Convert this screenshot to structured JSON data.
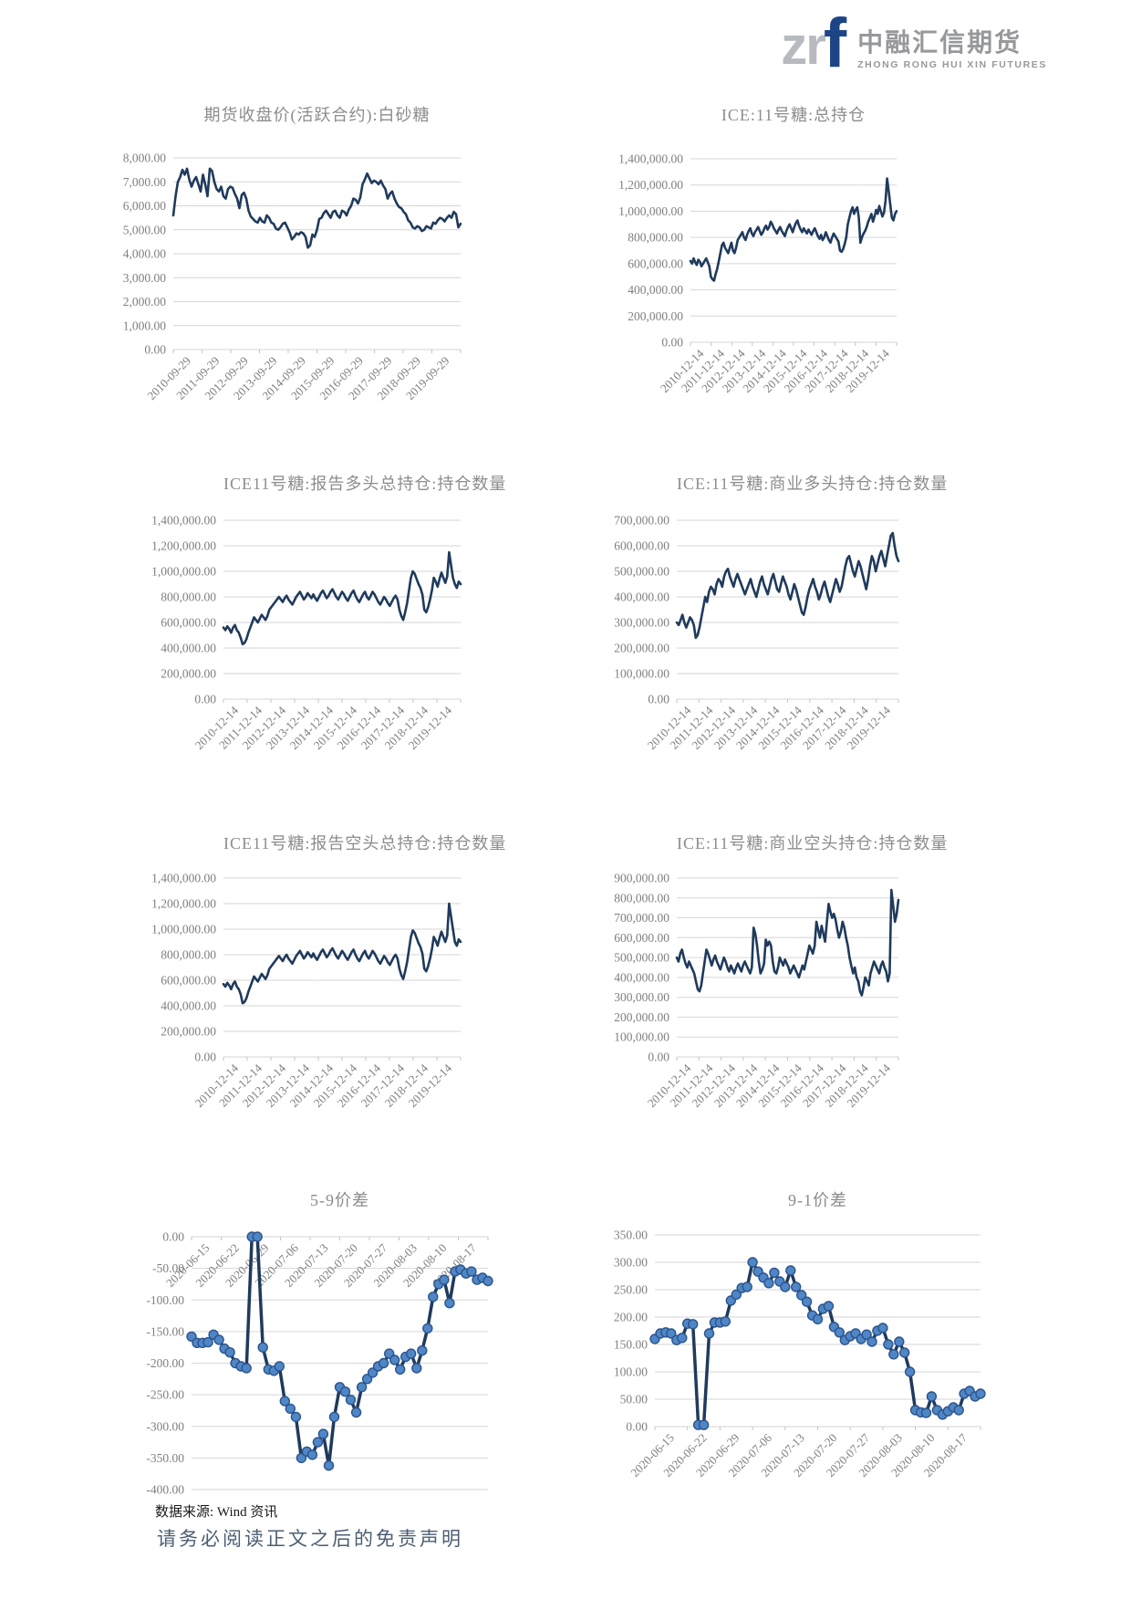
{
  "logo": {
    "zr": "zr",
    "f": "f",
    "cn": "中融汇信期货",
    "en": "ZHONG RONG HUI XIN FUTURES"
  },
  "footer": {
    "source": "数据来源: Wind 资讯",
    "disclaimer": "请务必阅读正文之后的免责声明"
  },
  "colors": {
    "line": "#1f3a5c",
    "marker_fill": "#4f86c6",
    "marker_stroke": "#2c548c",
    "grid": "#d6d6d6",
    "tick_mark": "#c4c4c4",
    "tick_text": "#7f7f7f",
    "title_text": "#8c8c8c",
    "logo_blue": "#1d4586",
    "logo_gray": "#97989b",
    "disclaimer_text": "#4d5e73"
  },
  "chart_data": [
    {
      "type": "line",
      "title": "期货收盘价(活跃合约):白砂糖",
      "ylim": [
        0,
        8000
      ],
      "ystep": 1000,
      "grid": true,
      "markers": false,
      "x_tick_rotation": -45,
      "x_labels_position": "bottom",
      "x": [
        "2010-09-29",
        "2011-09-29",
        "2012-09-29",
        "2013-09-29",
        "2014-09-29",
        "2015-09-29",
        "2016-09-29",
        "2017-09-29",
        "2018-09-29",
        "2019-09-29"
      ],
      "values": [
        5600,
        6400,
        7000,
        7200,
        7500,
        7300,
        7550,
        7100,
        6800,
        7050,
        7200,
        6900,
        6600,
        7300,
        6900,
        6400,
        7550,
        7450,
        7000,
        6700,
        6600,
        6800,
        6400,
        6300,
        6700,
        6800,
        6750,
        6500,
        6300,
        5900,
        6450,
        6550,
        6300,
        5800,
        5550,
        5450,
        5350,
        5300,
        5500,
        5350,
        5300,
        5600,
        5500,
        5300,
        5250,
        5050,
        5000,
        5100,
        5250,
        5300,
        5100,
        4900,
        4600,
        4700,
        4850,
        4800,
        4900,
        4850,
        4700,
        4250,
        4350,
        4800,
        4700,
        5000,
        5450,
        5500,
        5700,
        5800,
        5650,
        5500,
        5750,
        5800,
        5600,
        5500,
        5800,
        5750,
        5600,
        5850,
        6000,
        6300,
        6250,
        6100,
        6350,
        6900,
        7100,
        7350,
        7150,
        6950,
        7050,
        7000,
        6900,
        7050,
        6850,
        6700,
        6300,
        6500,
        6600,
        6300,
        6100,
        5950,
        5900,
        5750,
        5650,
        5400,
        5300,
        5100,
        5050,
        5150,
        5100,
        4950,
        5000,
        5150,
        5100,
        5050,
        5300,
        5250,
        5400,
        5500,
        5450,
        5350,
        5500,
        5600,
        5500,
        5750,
        5650,
        5100,
        5250
      ]
    },
    {
      "type": "line",
      "title": "ICE:11号糖:总持仓",
      "ylim": [
        0,
        1400000
      ],
      "ystep": 200000,
      "grid": true,
      "markers": false,
      "x_tick_rotation": -45,
      "x_labels_position": "bottom",
      "x": [
        "2010-12-14",
        "2011-12-14",
        "2012-12-14",
        "2013-12-14",
        "2014-12-14",
        "2015-12-14",
        "2016-12-14",
        "2017-12-14",
        "2018-12-14",
        "2019-12-14"
      ],
      "values": [
        620000,
        600000,
        640000,
        610000,
        590000,
        630000,
        615000,
        580000,
        600000,
        620000,
        640000,
        610000,
        580000,
        500000,
        480000,
        470000,
        520000,
        560000,
        620000,
        680000,
        740000,
        760000,
        720000,
        700000,
        680000,
        720000,
        760000,
        700000,
        680000,
        720000,
        780000,
        800000,
        820000,
        840000,
        800000,
        780000,
        820000,
        850000,
        870000,
        830000,
        810000,
        840000,
        860000,
        880000,
        850000,
        820000,
        840000,
        870000,
        890000,
        860000,
        880000,
        920000,
        900000,
        870000,
        850000,
        830000,
        860000,
        880000,
        850000,
        830000,
        810000,
        850000,
        880000,
        900000,
        870000,
        840000,
        880000,
        910000,
        930000,
        890000,
        860000,
        840000,
        870000,
        850000,
        830000,
        860000,
        840000,
        820000,
        850000,
        870000,
        840000,
        810000,
        790000,
        820000,
        780000,
        800000,
        840000,
        810000,
        780000,
        760000,
        800000,
        830000,
        810000,
        790000,
        770000,
        700000,
        690000,
        710000,
        750000,
        800000,
        900000,
        950000,
        1000000,
        1030000,
        980000,
        1010000,
        1030000,
        950000,
        760000,
        800000,
        830000,
        850000,
        880000,
        920000,
        950000,
        980000,
        920000,
        960000,
        1010000,
        980000,
        1040000,
        1000000,
        960000,
        990000,
        1080000,
        1250000,
        1150000,
        1050000,
        950000,
        930000,
        980000,
        1000000
      ]
    },
    {
      "type": "line",
      "title": "ICE11号糖:报告多头总持仓:持仓数量",
      "ylim": [
        0,
        1400000
      ],
      "ystep": 200000,
      "grid": true,
      "markers": false,
      "x_tick_rotation": -45,
      "x_labels_position": "bottom",
      "x": [
        "2010-12-14",
        "2011-12-14",
        "2012-12-14",
        "2013-12-14",
        "2014-12-14",
        "2015-12-14",
        "2016-12-14",
        "2017-12-14",
        "2018-12-14",
        "2019-12-14"
      ],
      "values": [
        560000,
        540000,
        570000,
        550000,
        520000,
        560000,
        580000,
        540000,
        520000,
        480000,
        430000,
        440000,
        470000,
        520000,
        560000,
        600000,
        640000,
        620000,
        600000,
        630000,
        660000,
        640000,
        620000,
        650000,
        700000,
        720000,
        740000,
        760000,
        780000,
        800000,
        780000,
        760000,
        790000,
        810000,
        780000,
        760000,
        740000,
        770000,
        800000,
        820000,
        840000,
        810000,
        780000,
        800000,
        830000,
        810000,
        790000,
        820000,
        790000,
        770000,
        800000,
        830000,
        850000,
        820000,
        790000,
        810000,
        840000,
        860000,
        830000,
        800000,
        780000,
        810000,
        840000,
        820000,
        790000,
        770000,
        800000,
        830000,
        850000,
        810000,
        780000,
        760000,
        790000,
        820000,
        840000,
        800000,
        780000,
        810000,
        840000,
        820000,
        790000,
        760000,
        740000,
        770000,
        800000,
        780000,
        750000,
        730000,
        760000,
        790000,
        810000,
        780000,
        700000,
        650000,
        620000,
        680000,
        750000,
        850000,
        950000,
        1000000,
        980000,
        940000,
        900000,
        870000,
        820000,
        700000,
        680000,
        720000,
        780000,
        850000,
        950000,
        920000,
        880000,
        940000,
        990000,
        950000,
        910000,
        960000,
        1150000,
        1050000,
        950000,
        900000,
        870000,
        920000,
        900000
      ]
    },
    {
      "type": "line",
      "title": "ICE:11号糖:商业多头持仓:持仓数量",
      "ylim": [
        0,
        700000
      ],
      "ystep": 100000,
      "grid": true,
      "markers": false,
      "x_tick_rotation": -45,
      "x_labels_position": "bottom",
      "x": [
        "2010-12-14",
        "2011-12-14",
        "2012-12-14",
        "2013-12-14",
        "2014-12-14",
        "2015-12-14",
        "2016-12-14",
        "2017-12-14",
        "2018-12-14",
        "2019-12-14"
      ],
      "values": [
        300000,
        290000,
        310000,
        330000,
        300000,
        280000,
        300000,
        320000,
        310000,
        290000,
        240000,
        250000,
        280000,
        320000,
        360000,
        400000,
        380000,
        420000,
        440000,
        430000,
        410000,
        450000,
        470000,
        460000,
        440000,
        480000,
        500000,
        510000,
        480000,
        460000,
        440000,
        470000,
        490000,
        470000,
        450000,
        430000,
        410000,
        430000,
        450000,
        470000,
        440000,
        420000,
        400000,
        430000,
        460000,
        480000,
        450000,
        430000,
        410000,
        440000,
        470000,
        490000,
        460000,
        430000,
        420000,
        450000,
        480000,
        460000,
        440000,
        410000,
        390000,
        420000,
        450000,
        430000,
        400000,
        370000,
        340000,
        330000,
        360000,
        400000,
        430000,
        450000,
        470000,
        440000,
        420000,
        390000,
        410000,
        440000,
        460000,
        430000,
        400000,
        380000,
        410000,
        440000,
        470000,
        450000,
        420000,
        440000,
        480000,
        520000,
        550000,
        560000,
        530000,
        500000,
        480000,
        510000,
        540000,
        520000,
        490000,
        460000,
        430000,
        470000,
        520000,
        560000,
        540000,
        500000,
        530000,
        560000,
        580000,
        550000,
        520000,
        560000,
        600000,
        640000,
        650000,
        600000,
        560000,
        540000
      ]
    },
    {
      "type": "line",
      "title": "ICE11号糖:报告空头总持仓:持仓数量",
      "ylim": [
        0,
        1400000
      ],
      "ystep": 200000,
      "grid": true,
      "markers": false,
      "x_tick_rotation": -45,
      "x_labels_position": "bottom",
      "x": [
        "2010-12-14",
        "2011-12-14",
        "2012-12-14",
        "2013-12-14",
        "2014-12-14",
        "2015-12-14",
        "2016-12-14",
        "2017-12-14",
        "2018-12-14",
        "2019-12-14"
      ],
      "values": [
        570000,
        550000,
        580000,
        560000,
        530000,
        570000,
        590000,
        550000,
        530000,
        490000,
        420000,
        430000,
        460000,
        510000,
        550000,
        590000,
        630000,
        610000,
        590000,
        620000,
        650000,
        630000,
        610000,
        640000,
        690000,
        710000,
        730000,
        750000,
        770000,
        790000,
        770000,
        750000,
        780000,
        800000,
        770000,
        750000,
        730000,
        760000,
        790000,
        810000,
        830000,
        800000,
        770000,
        790000,
        820000,
        800000,
        780000,
        810000,
        780000,
        760000,
        790000,
        820000,
        840000,
        810000,
        780000,
        800000,
        830000,
        850000,
        820000,
        790000,
        770000,
        800000,
        830000,
        810000,
        780000,
        760000,
        790000,
        820000,
        840000,
        800000,
        770000,
        750000,
        780000,
        810000,
        830000,
        790000,
        770000,
        800000,
        830000,
        810000,
        780000,
        750000,
        730000,
        760000,
        790000,
        770000,
        740000,
        720000,
        750000,
        780000,
        800000,
        770000,
        690000,
        640000,
        610000,
        670000,
        740000,
        840000,
        940000,
        990000,
        970000,
        930000,
        890000,
        860000,
        810000,
        690000,
        670000,
        710000,
        770000,
        840000,
        940000,
        910000,
        870000,
        930000,
        980000,
        940000,
        900000,
        950000,
        1200000,
        1100000,
        1000000,
        900000,
        870000,
        920000,
        900000
      ]
    },
    {
      "type": "line",
      "title": "ICE:11号糖:商业空头持仓:持仓数量",
      "ylim": [
        0,
        900000
      ],
      "ystep": 100000,
      "grid": true,
      "markers": false,
      "x_tick_rotation": -45,
      "x_labels_position": "bottom",
      "x": [
        "2010-12-14",
        "2011-12-14",
        "2012-12-14",
        "2013-12-14",
        "2014-12-14",
        "2015-12-14",
        "2016-12-14",
        "2017-12-14",
        "2018-12-14",
        "2019-12-14"
      ],
      "values": [
        500000,
        480000,
        520000,
        540000,
        500000,
        470000,
        450000,
        480000,
        460000,
        440000,
        420000,
        380000,
        340000,
        330000,
        360000,
        420000,
        480000,
        540000,
        520000,
        490000,
        460000,
        490000,
        510000,
        480000,
        460000,
        440000,
        470000,
        500000,
        480000,
        450000,
        430000,
        460000,
        440000,
        420000,
        450000,
        470000,
        450000,
        430000,
        460000,
        480000,
        460000,
        440000,
        420000,
        450000,
        650000,
        620000,
        560000,
        480000,
        420000,
        440000,
        470000,
        590000,
        560000,
        580000,
        560000,
        480000,
        430000,
        420000,
        450000,
        500000,
        480000,
        460000,
        490000,
        470000,
        450000,
        420000,
        440000,
        460000,
        440000,
        420000,
        400000,
        430000,
        460000,
        440000,
        480000,
        520000,
        560000,
        540000,
        520000,
        560000,
        680000,
        640000,
        600000,
        660000,
        620000,
        580000,
        680000,
        770000,
        730000,
        700000,
        720000,
        690000,
        640000,
        600000,
        630000,
        680000,
        650000,
        600000,
        560000,
        500000,
        460000,
        420000,
        450000,
        400000,
        380000,
        330000,
        310000,
        350000,
        400000,
        380000,
        360000,
        420000,
        450000,
        480000,
        460000,
        440000,
        420000,
        460000,
        480000,
        450000,
        430000,
        380000,
        420000,
        840000,
        760000,
        680000,
        720000,
        790000
      ]
    },
    {
      "type": "line",
      "title": "5-9价差",
      "ylim": [
        -400,
        0
      ],
      "ystep": 50,
      "grid": true,
      "markers": true,
      "x_tick_rotation": -45,
      "x_labels_position": "at-zero",
      "x": [
        "2020-06-15",
        "2020-06-22",
        "2020-06-29",
        "2020-07-06",
        "2020-07-13",
        "2020-07-20",
        "2020-07-27",
        "2020-08-03",
        "2020-08-10",
        "2020-08-17"
      ],
      "values": [
        -158,
        -168,
        -168,
        -167,
        -155,
        -163,
        -177,
        -183,
        -200,
        -205,
        -208,
        0,
        0,
        -175,
        -210,
        -212,
        -205,
        -260,
        -272,
        -285,
        -350,
        -340,
        -345,
        -325,
        -312,
        -362,
        -285,
        -238,
        -245,
        -258,
        -278,
        -238,
        -225,
        -215,
        -205,
        -200,
        -185,
        -195,
        -210,
        -190,
        -185,
        -208,
        -180,
        -145,
        -95,
        -75,
        -68,
        -105,
        -55,
        -52,
        -58,
        -55,
        -68,
        -65,
        -70
      ]
    },
    {
      "type": "line",
      "title": "9-1价差",
      "ylim": [
        0,
        350
      ],
      "ystep": 50,
      "grid": true,
      "markers": true,
      "x_tick_rotation": -45,
      "x_labels_position": "bottom",
      "x": [
        "2020-06-15",
        "2020-06-22",
        "2020-06-29",
        "2020-07-06",
        "2020-07-13",
        "2020-07-20",
        "2020-07-27",
        "2020-08-03",
        "2020-08-10",
        "2020-08-17"
      ],
      "values": [
        160,
        170,
        172,
        170,
        158,
        162,
        188,
        187,
        3,
        3,
        170,
        190,
        190,
        192,
        230,
        241,
        253,
        255,
        300,
        283,
        272,
        262,
        281,
        265,
        255,
        285,
        255,
        240,
        228,
        203,
        196,
        215,
        220,
        182,
        172,
        158,
        165,
        170,
        160,
        168,
        155,
        175,
        180,
        150,
        132,
        155,
        135,
        100,
        30,
        26,
        25,
        55,
        30,
        22,
        28,
        35,
        30,
        60,
        65,
        55,
        60
      ]
    }
  ]
}
